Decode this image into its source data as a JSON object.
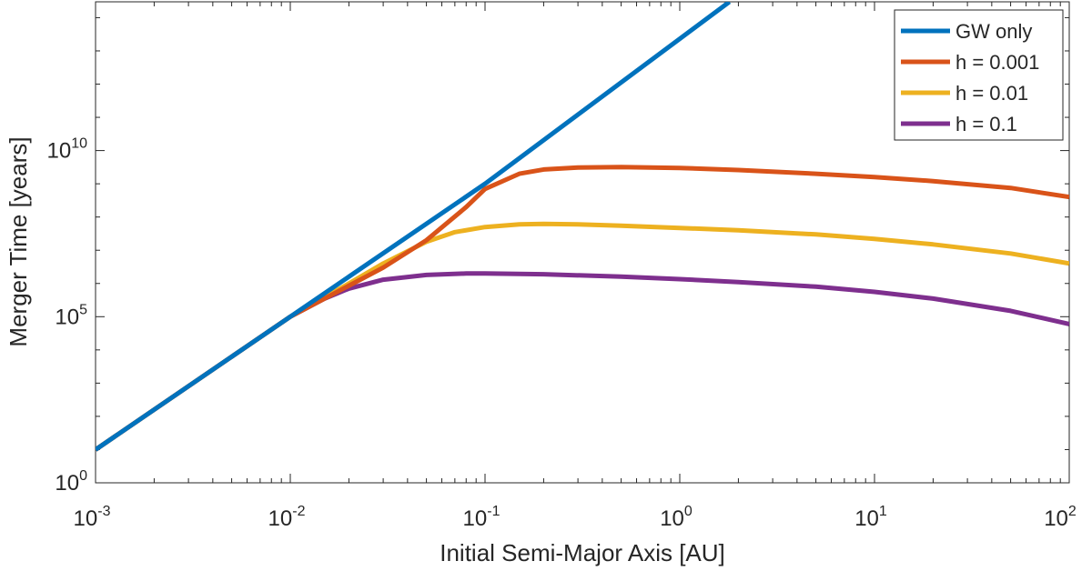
{
  "chart_data": {
    "type": "line",
    "title": "",
    "xlabel": "Initial Semi-Major Axis [AU]",
    "ylabel": "Merger Time [years]",
    "xscale": "log",
    "yscale": "log",
    "xlim": [
      0.001,
      100
    ],
    "ylim": [
      1,
      300000000000000.0
    ],
    "grid": false,
    "legend_position": "top-right",
    "x_ticks": [
      {
        "base": "10",
        "exp": "-3"
      },
      {
        "base": "10",
        "exp": "-2"
      },
      {
        "base": "10",
        "exp": "-1"
      },
      {
        "base": "10",
        "exp": "0"
      },
      {
        "base": "10",
        "exp": "1"
      },
      {
        "base": "10",
        "exp": "2"
      }
    ],
    "y_ticks": [
      {
        "base": "10",
        "exp": "0",
        "value": 1
      },
      {
        "base": "10",
        "exp": "5",
        "value": 100000
      },
      {
        "base": "10",
        "exp": "10",
        "value": 10000000000
      }
    ],
    "series": [
      {
        "name": "GW only",
        "color": "#0072BD",
        "x": [
          0.001,
          0.01,
          0.1,
          1.8
        ],
        "y": [
          10,
          100000,
          1000000000,
          300000000000000
        ]
      },
      {
        "name": "h = 0.001",
        "color": "#D95319",
        "x": [
          0.001,
          0.01,
          0.03,
          0.05,
          0.08,
          0.1,
          0.15,
          0.2,
          0.3,
          0.5,
          1,
          2,
          5,
          10,
          20,
          50,
          100
        ],
        "y": [
          10,
          100000,
          3000000,
          20000000,
          200000000,
          700000000,
          2000000000,
          2700000000,
          3100000000,
          3200000000,
          3000000000,
          2600000000,
          2000000000,
          1600000000,
          1200000000,
          750000000,
          400000000
        ]
      },
      {
        "name": "h = 0.01",
        "color": "#EDB120",
        "x": [
          0.001,
          0.01,
          0.02,
          0.03,
          0.05,
          0.07,
          0.1,
          0.15,
          0.2,
          0.3,
          0.5,
          1,
          2,
          5,
          10,
          20,
          50,
          100
        ],
        "y": [
          10,
          100000,
          1000000,
          4000000,
          18000000,
          35000000,
          50000000,
          60000000,
          62000000,
          60000000,
          55000000,
          47000000,
          40000000,
          30000000,
          22000000,
          15000000,
          8000000,
          4000000
        ]
      },
      {
        "name": "h = 0.1",
        "color": "#7E2F8E",
        "x": [
          0.001,
          0.01,
          0.015,
          0.02,
          0.03,
          0.05,
          0.08,
          0.1,
          0.2,
          0.5,
          1,
          2,
          5,
          10,
          20,
          50,
          100
        ],
        "y": [
          10,
          100000,
          350000,
          700000,
          1300000,
          1800000,
          2000000,
          2000000,
          1900000,
          1600000,
          1350000,
          1100000,
          800000,
          560000,
          350000,
          150000,
          60000
        ]
      }
    ]
  }
}
